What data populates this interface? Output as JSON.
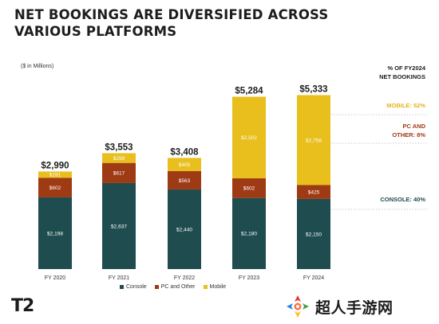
{
  "header": {
    "title_line1": "NET BOOKINGS ARE DIVERSIFIED ACROSS",
    "title_line2": "VARIOUS PLATFORMS"
  },
  "unit_label": "($ in Millions)",
  "side_labels": {
    "heading_line1": "% OF FY2024",
    "heading_line2": "NET BOOKINGS",
    "mobile": "MOBILE: 52%",
    "pc_line1": "PC AND",
    "pc_line2": "OTHER: 8%",
    "console": "CONSOLE: 40%"
  },
  "legend": {
    "console": "Console",
    "pc": "PC and Other",
    "mobile": "Mobile"
  },
  "colors": {
    "console": "#1f4d4f",
    "pc": "#9e3a14",
    "mobile": "#e8bf1d",
    "mobile_text": "#e2b41a",
    "pc_text": "#9e3a14",
    "console_text": "#1f4d4f"
  },
  "logo_text": "T2",
  "watermark_text": "超人手游网",
  "chart_data": {
    "type": "bar",
    "stacked": true,
    "categories": [
      "FY 2020",
      "FY 2021",
      "FY 2022",
      "FY 2023",
      "FY 2024"
    ],
    "series": [
      {
        "name": "Console",
        "values": [
          2198,
          2637,
          2440,
          2180,
          2150
        ],
        "labels": [
          "$2,198",
          "$2,637",
          "$2,440",
          "$2,180",
          "$2,150"
        ]
      },
      {
        "name": "PC and Other",
        "values": [
          602,
          617,
          563,
          602,
          425
        ],
        "labels": [
          "$602",
          "$617",
          "$563",
          "$602",
          "$425"
        ]
      },
      {
        "name": "Mobile",
        "values": [
          191,
          299,
          405,
          2502,
          2758
        ],
        "labels": [
          "$191",
          "$299",
          "$405",
          "$2,502",
          "$2,758"
        ]
      }
    ],
    "totals": [
      2990,
      3553,
      3408,
      5284,
      5333
    ],
    "total_labels": [
      "$2,990",
      "$3,553",
      "$3,408",
      "$5,284",
      "$5,333"
    ],
    "ylim": [
      0,
      5600
    ],
    "grid": false,
    "legend_position": "bottom"
  }
}
